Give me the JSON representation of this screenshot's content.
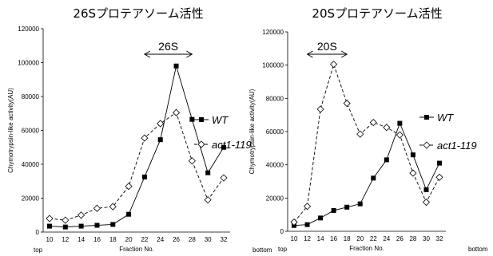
{
  "chart_data": [
    {
      "type": "line",
      "title": "26Sプロテアソーム活性",
      "xlabel": "Fraction No.",
      "ylabel": "Chymotrypsin-like activity(AU)",
      "x_start_label": "top",
      "x_end_label": "bottom",
      "categories": [
        "10",
        "12",
        "14",
        "16",
        "18",
        "20",
        "22",
        "24",
        "26",
        "28",
        "30",
        "32"
      ],
      "ylim": [
        0,
        120000
      ],
      "yticks": [
        0,
        20000,
        40000,
        60000,
        80000,
        100000,
        120000
      ],
      "ytick_labels": [
        "0",
        "20000",
        "40000",
        "60000",
        "80000",
        "100000",
        "120000"
      ],
      "region_label": "26S",
      "region_range": [
        "22",
        "28"
      ],
      "legend_position": "right",
      "series": [
        {
          "name": "WT",
          "marker": "square",
          "line": "solid",
          "values": [
            3500,
            3000,
            3500,
            4000,
            4500,
            10500,
            32500,
            54500,
            98000,
            66500,
            35000,
            50000
          ]
        },
        {
          "name": "act1-119",
          "marker": "diamond",
          "line": "dashed",
          "values": [
            8000,
            7000,
            10000,
            14000,
            15000,
            27000,
            55500,
            64000,
            70500,
            42000,
            19000,
            32000
          ]
        }
      ]
    },
    {
      "type": "line",
      "title": "20Sプロテアソーム活性",
      "xlabel": "Fraction No.",
      "ylabel": "Chymotrypsin-like activity(AU)",
      "x_start_label": "top",
      "x_end_label": "bottom",
      "categories": [
        "10",
        "12",
        "14",
        "16",
        "18",
        "20",
        "22",
        "24",
        "26",
        "28",
        "30",
        "32"
      ],
      "ylim": [
        0,
        120000
      ],
      "yticks": [
        0,
        20000,
        40000,
        60000,
        80000,
        100000,
        120000
      ],
      "ytick_labels": [
        "0",
        "20000",
        "40000",
        "60000",
        "80000",
        "100000",
        "120000"
      ],
      "region_label": "20S",
      "region_range": [
        "12",
        "18"
      ],
      "legend_position": "right",
      "series": [
        {
          "name": "WT",
          "marker": "square",
          "line": "solid",
          "values": [
            3500,
            4000,
            8000,
            12500,
            14500,
            16500,
            32000,
            43000,
            65000,
            46000,
            25000,
            41000
          ]
        },
        {
          "name": "act1-119",
          "marker": "diamond",
          "line": "dashed",
          "values": [
            5500,
            15000,
            73500,
            100500,
            77000,
            58500,
            65500,
            62500,
            58000,
            35000,
            17500,
            32500
          ]
        }
      ]
    }
  ]
}
